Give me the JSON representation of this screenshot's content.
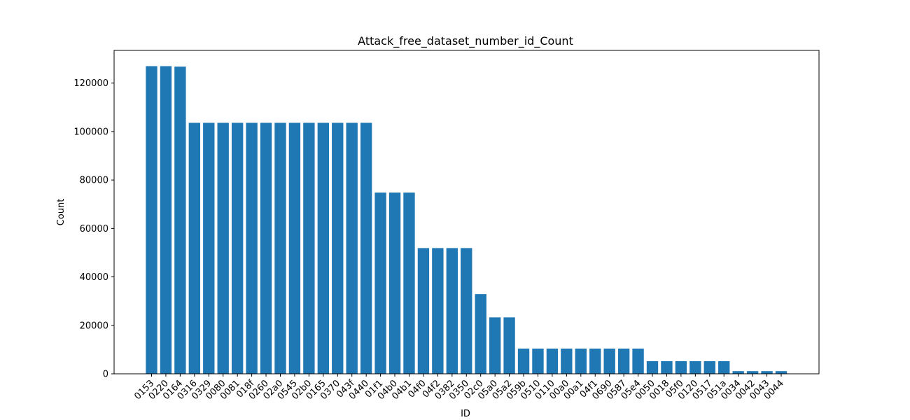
{
  "chart_data": {
    "type": "bar",
    "title": "Attack_free_dataset_number_id_Count",
    "xlabel": "ID",
    "ylabel": "Count",
    "ylim": [
      0,
      133500
    ],
    "yticks": [
      0,
      20000,
      40000,
      60000,
      80000,
      100000,
      120000
    ],
    "grid": false,
    "bar_color": "#1f77b4",
    "categories": [
      "0153",
      "0220",
      "0164",
      "0316",
      "0329",
      "0080",
      "0081",
      "018f",
      "0260",
      "02a0",
      "0545",
      "02b0",
      "0165",
      "0370",
      "043f",
      "0440",
      "01f1",
      "04b0",
      "04b1",
      "04f0",
      "04f2",
      "0382",
      "0350",
      "02c0",
      "05a0",
      "05a2",
      "059b",
      "0510",
      "0110",
      "00a0",
      "00a1",
      "04f1",
      "0690",
      "0587",
      "05e4",
      "0050",
      "0018",
      "05f0",
      "0120",
      "0517",
      "051a",
      "0034",
      "0042",
      "0043",
      "0044"
    ],
    "values": [
      127000,
      127000,
      126800,
      103600,
      103600,
      103600,
      103600,
      103600,
      103600,
      103600,
      103600,
      103600,
      103600,
      103600,
      103600,
      103600,
      74800,
      74800,
      74800,
      51900,
      51900,
      51900,
      51900,
      32900,
      23300,
      23300,
      10400,
      10400,
      10400,
      10400,
      10400,
      10400,
      10400,
      10400,
      10400,
      5200,
      5200,
      5200,
      5200,
      5200,
      5200,
      1100,
      1100,
      1100,
      1100
    ]
  }
}
